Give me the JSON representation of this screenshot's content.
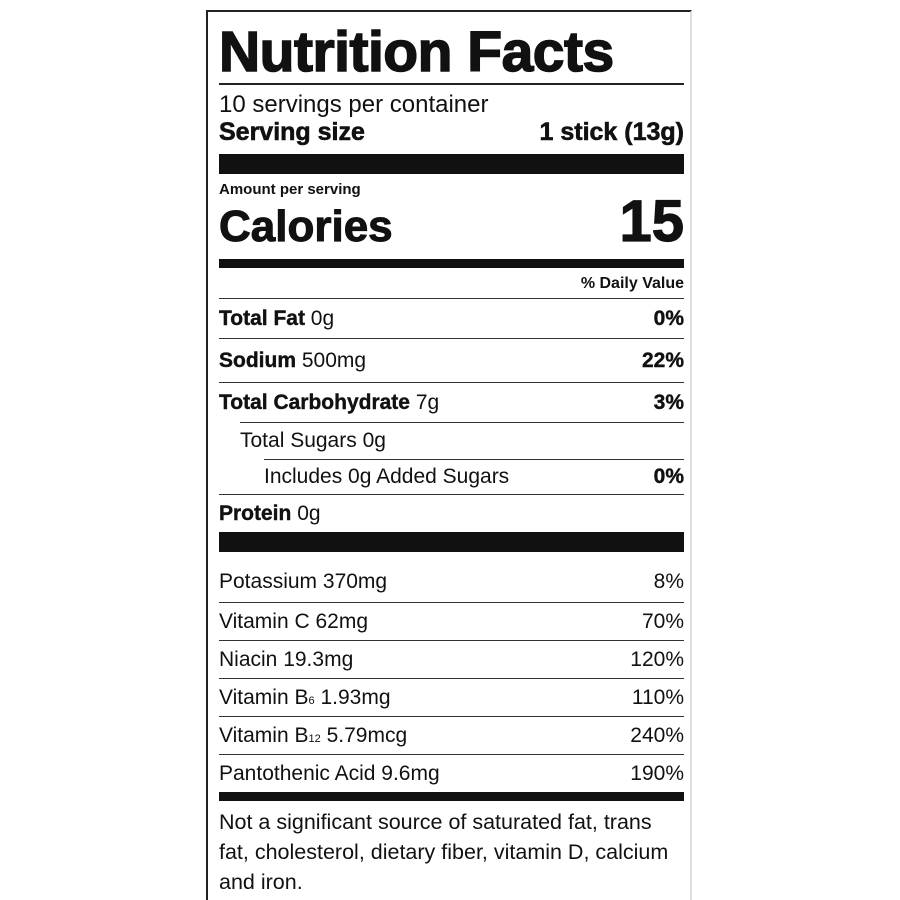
{
  "title": "Nutrition Facts",
  "servings_per_container": "10 servings per container",
  "serving_size": {
    "label": "Serving size",
    "value": "1 stick (13g)"
  },
  "amount_per_serving": "Amount per serving",
  "calories": {
    "label": "Calories",
    "value": "15"
  },
  "daily_value_header": "% Daily Value",
  "nutrients": [
    {
      "name": "Total Fat",
      "amount": "0g",
      "dv": "0%"
    },
    {
      "name": "Sodium",
      "amount": "500mg",
      "dv": "22%"
    },
    {
      "name": "Total Carbohydrate",
      "amount": "7g",
      "dv": "3%"
    },
    {
      "name": "Total Sugars",
      "amount": "0g",
      "dv": ""
    },
    {
      "name": "Includes 0g Added Sugars",
      "amount": "",
      "dv": "0%"
    },
    {
      "name": "Protein",
      "amount": "0g",
      "dv": ""
    }
  ],
  "vitamins": [
    {
      "name": "Potassium",
      "sub": "",
      "amount": "370mg",
      "dv": "8%"
    },
    {
      "name": "Vitamin C",
      "sub": "",
      "amount": "62mg",
      "dv": "70%"
    },
    {
      "name": "Niacin",
      "sub": "",
      "amount": "19.3mg",
      "dv": "120%"
    },
    {
      "name": "Vitamin B",
      "sub": "6",
      "amount": "1.93mg",
      "dv": "110%"
    },
    {
      "name": "Vitamin B",
      "sub": "12",
      "amount": "5.79mcg",
      "dv": "240%"
    },
    {
      "name": "Pantothenic Acid",
      "sub": "",
      "amount": "9.6mg",
      "dv": "190%"
    }
  ],
  "footnote": "Not a significant source of saturated fat, trans fat, cholesterol, dietary fiber, vitamin D, calcium and iron."
}
